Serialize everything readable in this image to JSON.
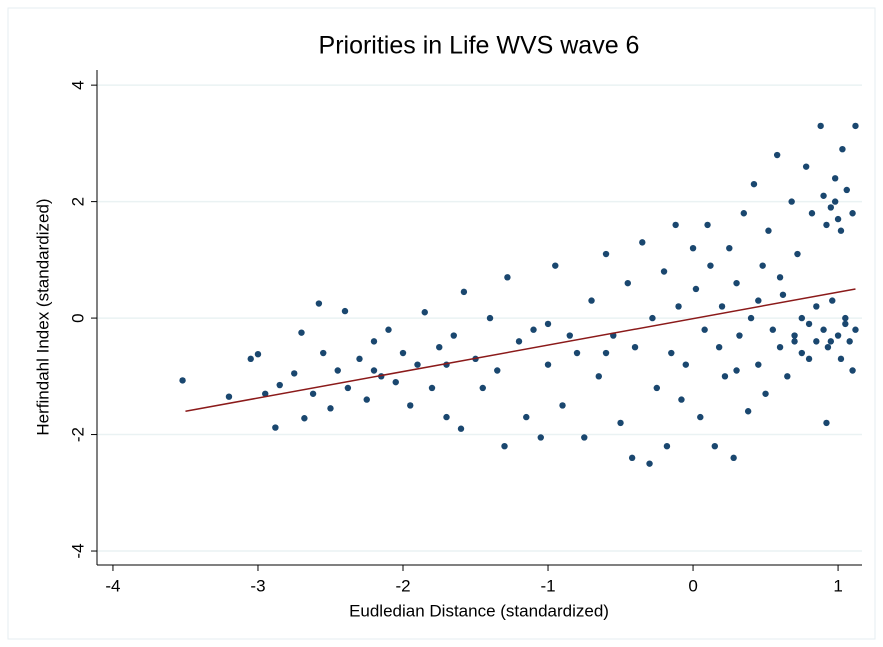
{
  "chart_data": {
    "type": "scatter",
    "title": "Priorities in Life WVS wave 6",
    "xlabel": "Eudledian Distance (standardized)",
    "ylabel": "Herfindahl Index (standardized)",
    "xlim": [
      -4.11,
      1.165
    ],
    "ylim": [
      -4.24,
      4.26
    ],
    "xticks": [
      -4,
      -3,
      -2,
      -1,
      0,
      1
    ],
    "yticks": [
      -4,
      -2,
      0,
      2,
      4
    ],
    "grid": true,
    "color": "#1a476f",
    "x": [
      -3.52,
      -3.2,
      -3.05,
      -3.0,
      -2.95,
      -2.88,
      -2.85,
      -2.75,
      -2.7,
      -2.68,
      -2.62,
      -2.58,
      -2.55,
      -2.5,
      -2.45,
      -2.4,
      -2.38,
      -2.3,
      -2.25,
      -2.2,
      -2.15,
      -2.1,
      -2.05,
      -2.0,
      -1.95,
      -1.9,
      -1.85,
      -1.8,
      -1.75,
      -1.7,
      -1.65,
      -1.6,
      -1.58,
      -1.5,
      -1.45,
      -1.4,
      -1.35,
      -1.3,
      -1.28,
      -1.2,
      -1.15,
      -1.1,
      -1.05,
      -1.0,
      -0.95,
      -0.9,
      -0.85,
      -0.8,
      -0.75,
      -0.7,
      -0.65,
      -0.6,
      -0.55,
      -0.5,
      -0.45,
      -0.42,
      -0.4,
      -0.35,
      -0.3,
      -0.28,
      -0.25,
      -0.2,
      -0.18,
      -0.15,
      -0.12,
      -0.1,
      -0.08,
      -0.05,
      0.0,
      0.02,
      0.05,
      0.08,
      0.1,
      0.12,
      0.15,
      0.18,
      0.2,
      0.22,
      0.25,
      0.28,
      0.3,
      0.32,
      0.35,
      0.38,
      0.4,
      0.42,
      0.45,
      0.48,
      0.5,
      0.52,
      0.55,
      0.58,
      0.6,
      0.62,
      0.65,
      0.68,
      0.7,
      0.72,
      0.75,
      0.78,
      0.8,
      0.82,
      0.85,
      0.88,
      0.9,
      0.9,
      0.92,
      0.93,
      0.95,
      0.96,
      0.98,
      1.0,
      1.0,
      1.02,
      1.03,
      1.05,
      1.06,
      1.08,
      1.1,
      1.12,
      1.12,
      1.1,
      0.85,
      0.75,
      0.6,
      0.45,
      0.3,
      -0.6,
      -1.0,
      -1.7,
      -2.2,
      0.7,
      0.8,
      0.95,
      1.05,
      0.98,
      1.02,
      0.92
    ],
    "values": [
      -1.07,
      -1.35,
      -0.7,
      -0.62,
      -1.3,
      -1.88,
      -1.15,
      -0.95,
      -0.25,
      -1.72,
      -1.3,
      0.25,
      -0.6,
      -1.55,
      -0.9,
      0.12,
      -1.2,
      -0.7,
      -1.4,
      -0.4,
      -1.0,
      -0.2,
      -1.1,
      -0.6,
      -1.5,
      -0.8,
      0.1,
      -1.2,
      -0.5,
      -1.7,
      -0.3,
      -1.9,
      0.45,
      -0.7,
      -1.2,
      0.0,
      -0.9,
      -2.2,
      0.7,
      -0.4,
      -1.7,
      -0.2,
      -2.05,
      -0.8,
      0.9,
      -1.5,
      -0.3,
      -0.6,
      -2.05,
      0.3,
      -1.0,
      1.1,
      -0.3,
      -1.8,
      0.6,
      -2.4,
      -0.5,
      1.3,
      -2.5,
      0.0,
      -1.2,
      0.8,
      -2.2,
      -0.6,
      1.6,
      0.2,
      -1.4,
      -0.8,
      1.2,
      0.5,
      -1.7,
      -0.2,
      1.6,
      0.9,
      -2.2,
      -0.5,
      0.2,
      -1.0,
      1.2,
      -2.4,
      0.6,
      -0.3,
      1.8,
      -1.6,
      0.0,
      2.3,
      -0.8,
      0.9,
      -1.3,
      1.5,
      -0.2,
      2.8,
      -0.5,
      0.4,
      -1.0,
      2.0,
      -0.3,
      1.1,
      -0.6,
      2.6,
      -0.1,
      1.8,
      -0.4,
      3.3,
      -0.2,
      2.1,
      -1.8,
      -0.5,
      1.9,
      0.3,
      2.4,
      -0.3,
      1.7,
      -0.7,
      2.9,
      0.0,
      2.2,
      -0.4,
      1.8,
      3.3,
      -0.2,
      -0.9,
      0.2,
      0.0,
      0.7,
      0.3,
      -0.9,
      -0.6,
      -0.1,
      -0.8,
      -0.9,
      -0.4,
      -0.7,
      -0.4,
      -0.1,
      2.0,
      1.5,
      1.6
    ],
    "fit_line": {
      "x": [
        -3.5,
        1.12
      ],
      "values": [
        -1.6,
        0.5
      ],
      "color": "#8b1a1a"
    }
  }
}
